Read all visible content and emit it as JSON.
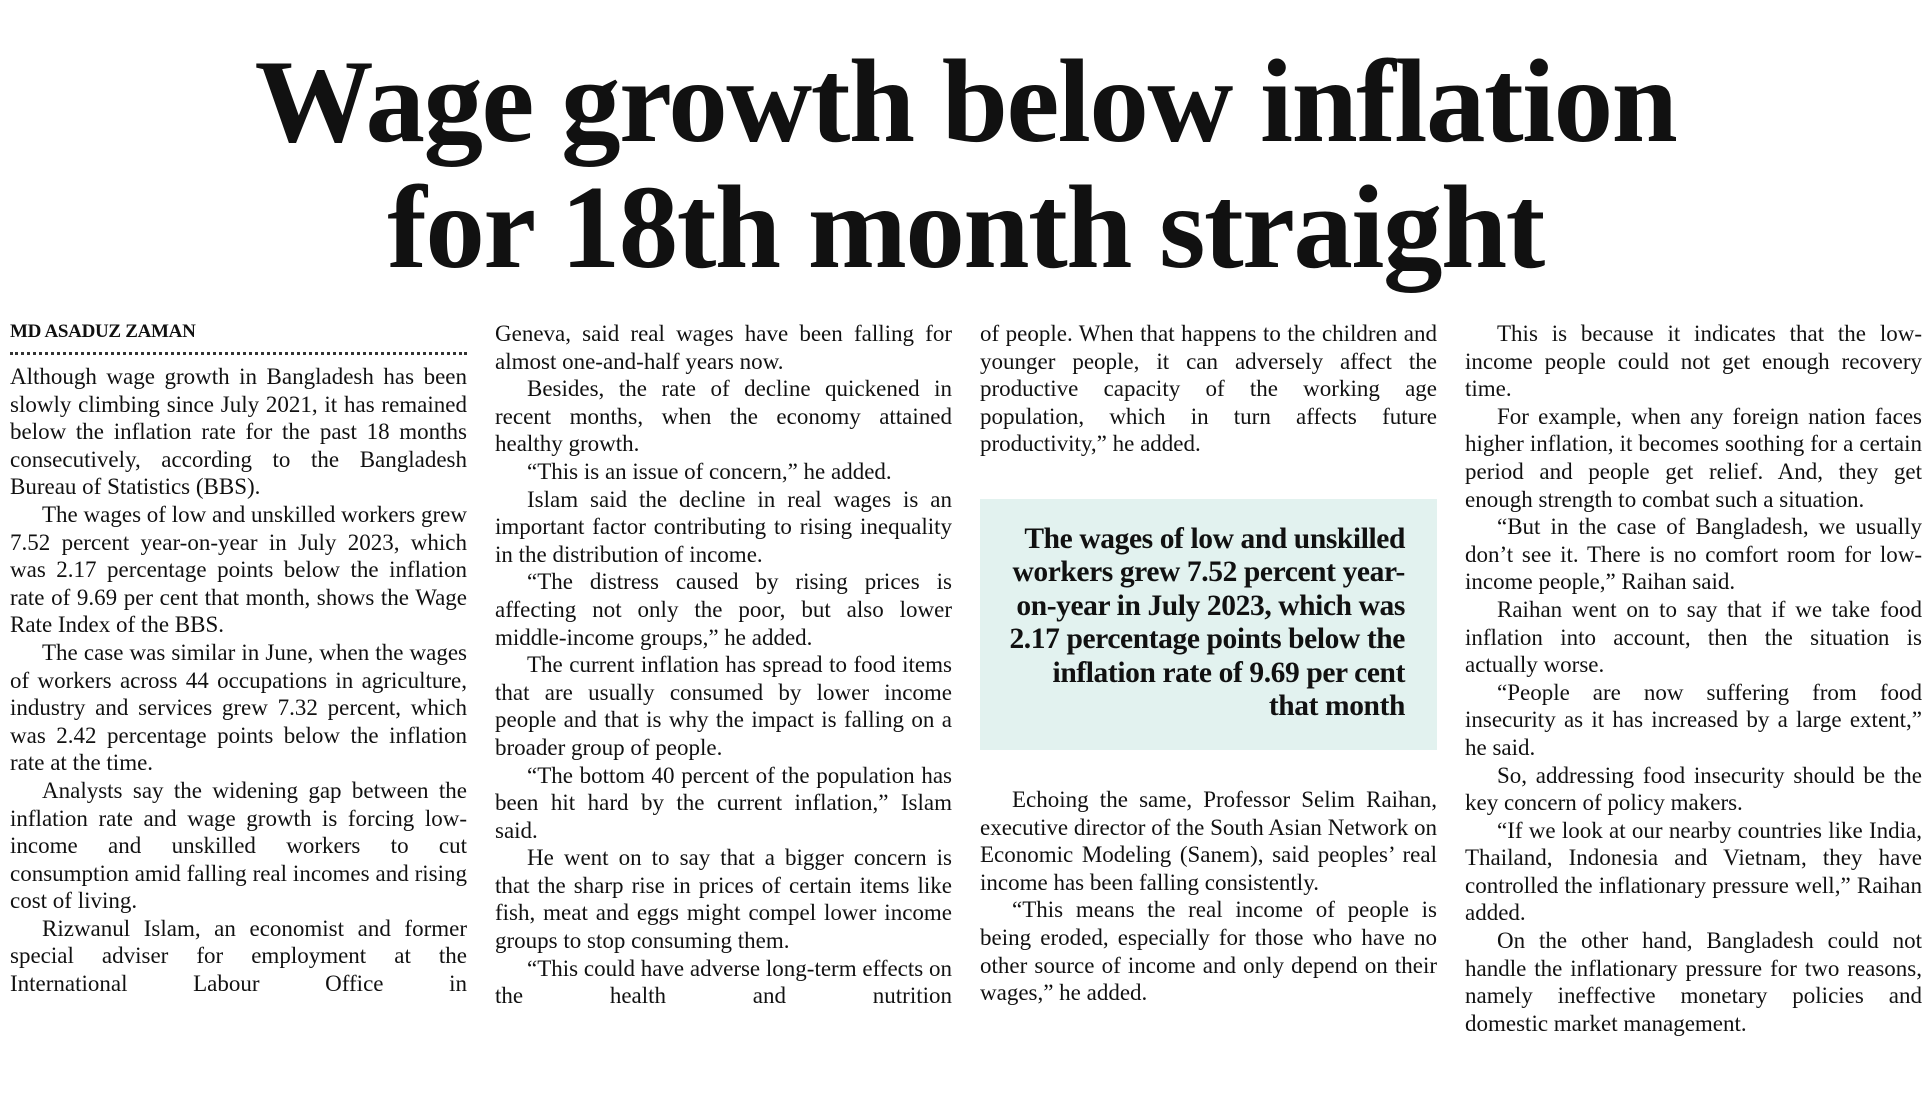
{
  "headline": {
    "line1": "Wage growth below inflation",
    "line2": "for 18th month straight"
  },
  "byline": "MD ASADUZ ZAMAN",
  "columns": [
    {
      "paragraphs": [
        "Although wage growth in Bangladesh has been slowly climbing since July 2021, it has remained below the inflation rate for the past 18 months consecutively, according to the Bangladesh Bureau of Statistics (BBS).",
        "The wages of low and unskilled workers grew 7.52 percent year-on-year in July 2023, which was 2.17 percentage points below the inflation rate of 9.69 per cent that month, shows the Wage Rate Index of the BBS.",
        "The case was similar in June, when the wages of workers across 44 occupations in agriculture, industry and services grew 7.32 percent, which was 2.42 percentage points below the inflation rate at the time.",
        "Analysts say the widening gap between the inflation rate and wage growth is forcing low-income and unskilled workers to cut consumption amid falling real incomes and rising cost of living.",
        "Rizwanul Islam, an economist and former special adviser for employment at the International Labour Office in"
      ]
    },
    {
      "paragraphs": [
        "Geneva, said real wages have been falling for almost one-and-half years now.",
        "Besides, the rate of decline quickened in recent months, when the economy attained healthy growth.",
        "“This is an issue of concern,” he added.",
        "Islam said the decline in real wages is an important factor contributing to rising inequality in the distribution of income.",
        "“The distress caused by rising prices is affecting not only the poor, but also lower middle-income groups,” he added.",
        "The current inflation has spread to food items that are usually consumed by lower income people and that is why the impact is falling on a broader group of people.",
        "“The bottom 40 percent of the population has been hit hard by the current inflation,” Islam said.",
        "He went on to say that a bigger concern is that the sharp rise in prices of certain items like fish, meat and eggs might compel lower income groups to stop consuming them.",
        "“This could have adverse long-term effects on the health and nutrition"
      ]
    },
    {
      "paragraphs": [
        "of people. When that happens to the children and younger people, it can adversely affect the productive capacity of the working age population, which in turn affects future productivity,” he added.",
        "Echoing the same, Professor Selim Raihan, executive director of the South Asian Network on Economic Modeling (Sanem), said peoples’ real income has been falling consistently.",
        "“This means the real income of people is being eroded, especially for those who have no other source of income and only depend on their wages,” he added."
      ],
      "pullquote": "The wages of low and unskilled workers grew 7.52 percent year-on-year in July 2023, which was 2.17 percentage points below the inflation rate of 9.69 per cent that month"
    },
    {
      "paragraphs": [
        "This is because it indicates that the low-income people could not get enough recovery time.",
        "For example, when any foreign nation faces higher inflation, it becomes soothing for a certain period and people get relief. And, they get enough strength to combat such a situation.",
        "“But in the case of Bangladesh, we usually don’t see it. There is no comfort room for low-income people,” Raihan said.",
        "Raihan went on to say that if we take food inflation into account, then the situation is actually worse.",
        "“People are now suffering from food insecurity as it has increased by a large extent,” he said.",
        "So, addressing food insecurity should be the key concern of policy makers.",
        "“If we look at our nearby countries like India, Thailand, Indonesia and Vietnam, they have controlled the inflationary pressure well,” Raihan added.",
        "On the other hand, Bangladesh could not handle the inflationary pressure for two reasons, namely ineffective monetary policies and domestic market management."
      ]
    }
  ],
  "colors": {
    "pullquote_background": "#e2f2ef",
    "text": "#111111"
  }
}
